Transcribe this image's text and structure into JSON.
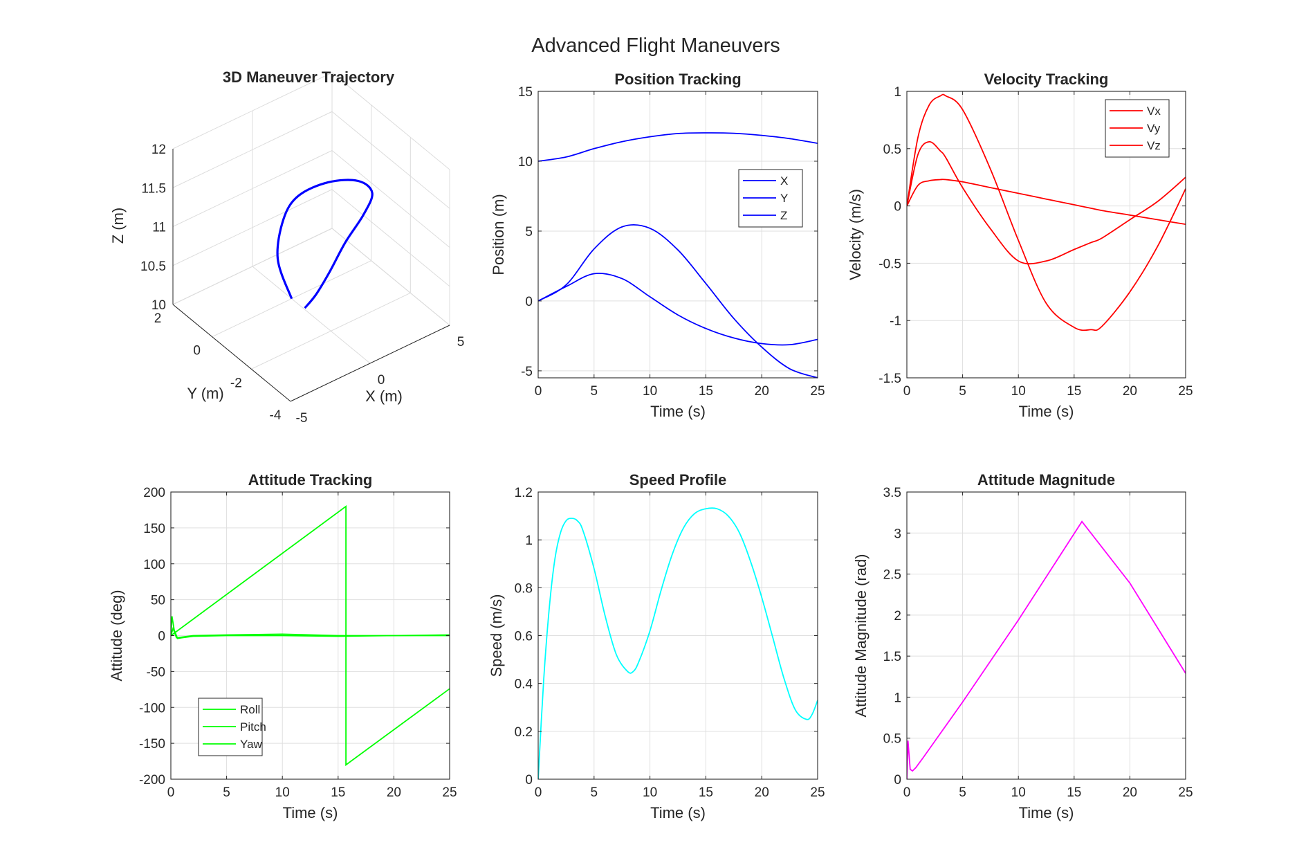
{
  "figure": {
    "title": "Advanced Flight Maneuvers"
  },
  "chart_data": [
    {
      "id": "traj3d",
      "type": "line3d",
      "title": "3D Maneuver Trajectory",
      "xlabel": "X (m)",
      "ylabel": "Y (m)",
      "zlabel": "Z (m)",
      "xlim": [
        -5,
        5
      ],
      "ylim": [
        -4,
        2
      ],
      "zlim": [
        10,
        12
      ],
      "xticks": [
        -5,
        0,
        5
      ],
      "yticks": [
        -4,
        -2,
        0,
        2
      ],
      "zticks": [
        10,
        10.5,
        11,
        11.5,
        12
      ],
      "color": "#0000ff",
      "x": [
        0,
        0.54,
        1.68,
        2.46,
        3.5,
        4.12,
        3.72,
        2.17,
        0.27,
        -1.34,
        -2.33,
        -2.75
      ],
      "y": [
        0,
        1.15,
        1.78,
        1.65,
        0.98,
        -0.05,
        -1.09,
        -1.9,
        -2.52,
        -3.02,
        -3.13,
        -2.9
      ],
      "z": [
        10,
        10.22,
        10.49,
        10.74,
        10.95,
        11.12,
        11.22,
        11.26,
        11.22,
        11.1,
        10.93,
        10.75
      ],
      "grid": true
    },
    {
      "id": "position",
      "type": "line",
      "title": "Position Tracking",
      "xlabel": "Time (s)",
      "ylabel": "Position (m)",
      "xlim": [
        0,
        25
      ],
      "ylim": [
        -5.5,
        15
      ],
      "xticks": [
        0,
        5,
        10,
        15,
        20,
        25
      ],
      "yticks": [
        -5,
        0,
        5,
        10,
        15
      ],
      "legend": "top-right",
      "x": [
        0,
        2.5,
        5,
        7.5,
        10,
        12.5,
        15,
        17.5,
        20,
        22.5,
        25
      ],
      "series": [
        {
          "name": "X",
          "color": "#0000ff",
          "values": [
            0,
            1.15,
            3.72,
            5.3,
            5.2,
            3.65,
            1.25,
            -1.25,
            -3.3,
            -4.85,
            -5.5
          ]
        },
        {
          "name": "Y",
          "color": "#0000ff",
          "values": [
            0,
            1.03,
            1.95,
            1.6,
            0.3,
            -1.0,
            -1.97,
            -2.65,
            -3.05,
            -3.13,
            -2.75
          ]
        },
        {
          "name": "Z",
          "color": "#0000ff",
          "values": [
            10,
            10.3,
            10.9,
            11.4,
            11.75,
            11.98,
            12.03,
            12.0,
            11.85,
            11.62,
            11.28
          ]
        }
      ],
      "grid": true
    },
    {
      "id": "velocity",
      "type": "line",
      "title": "Velocity Tracking",
      "xlabel": "Time (s)",
      "ylabel": "Velocity (m/s)",
      "xlim": [
        0,
        25
      ],
      "ylim": [
        -1.5,
        1
      ],
      "xticks": [
        0,
        5,
        10,
        15,
        20,
        25
      ],
      "yticks": [
        -1.5,
        -1,
        -0.5,
        0,
        0.5,
        1
      ],
      "legend": "top-right",
      "x": [
        0,
        1,
        2,
        3,
        3.5,
        5,
        7.5,
        10,
        12.5,
        15,
        16.5,
        17.5,
        20,
        22.5,
        25
      ],
      "series": [
        {
          "name": "Vx",
          "color": "#ff0000",
          "values": [
            0,
            0.6,
            0.88,
            0.96,
            0.96,
            0.84,
            0.32,
            -0.3,
            -0.85,
            -1.06,
            -1.08,
            -1.05,
            -0.75,
            -0.35,
            0.15
          ]
        },
        {
          "name": "Vy",
          "color": "#ff0000",
          "values": [
            0,
            0.45,
            0.56,
            0.48,
            0.42,
            0.16,
            -0.2,
            -0.48,
            -0.48,
            -0.38,
            -0.32,
            -0.28,
            -0.12,
            0.04,
            0.25
          ]
        },
        {
          "name": "Vz",
          "color": "#ff0000",
          "values": [
            0,
            0.18,
            0.22,
            0.23,
            0.23,
            0.21,
            0.16,
            0.11,
            0.06,
            0.01,
            -0.02,
            -0.04,
            -0.08,
            -0.12,
            -0.16
          ]
        }
      ],
      "grid": true
    },
    {
      "id": "attitude",
      "type": "line",
      "title": "Attitude Tracking",
      "xlabel": "Time (s)",
      "ylabel": "Attitude (deg)",
      "xlim": [
        0,
        25
      ],
      "ylim": [
        -200,
        200
      ],
      "xticks": [
        0,
        5,
        10,
        15,
        20,
        25
      ],
      "yticks": [
        -200,
        -150,
        -100,
        -50,
        0,
        50,
        100,
        150,
        200
      ],
      "legend": "bottom-left",
      "series": [
        {
          "name": "Roll",
          "color": "#00ff00",
          "x": [
            0,
            0.1,
            0.3,
            0.6,
            1,
            2,
            5,
            10,
            15,
            20,
            25
          ],
          "values": [
            0,
            27,
            8,
            -4,
            -3,
            -1,
            0,
            0,
            -1,
            0,
            0
          ]
        },
        {
          "name": "Pitch",
          "color": "#00ff00",
          "x": [
            0,
            0.2,
            0.5,
            1,
            2,
            5,
            10,
            15,
            20,
            25
          ],
          "values": [
            0,
            10,
            -3,
            -2,
            0,
            1,
            2,
            0,
            0,
            1
          ]
        },
        {
          "name": "Yaw",
          "color": "#00ff00",
          "x": [
            0,
            15.7,
            15.7,
            25
          ],
          "values": [
            0,
            180,
            -180,
            -74
          ]
        }
      ],
      "grid": true
    },
    {
      "id": "speed",
      "type": "line",
      "title": "Speed Profile",
      "xlabel": "Time (s)",
      "ylabel": "Speed (m/s)",
      "xlim": [
        0,
        25
      ],
      "ylim": [
        0,
        1.2
      ],
      "xticks": [
        0,
        5,
        10,
        15,
        20,
        25
      ],
      "yticks": [
        0,
        0.2,
        0.4,
        0.6,
        0.8,
        1,
        1.2
      ],
      "series": [
        {
          "name": "",
          "color": "#00ffff",
          "x": [
            0,
            0.5,
            1,
            1.5,
            2,
            2.5,
            3,
            3.5,
            4,
            5,
            6,
            7,
            8,
            8.5,
            9,
            10,
            11,
            12,
            13,
            14,
            15,
            16,
            17,
            18,
            19,
            20,
            21,
            22,
            23,
            24,
            24.5,
            25
          ],
          "values": [
            0,
            0.42,
            0.72,
            0.92,
            1.03,
            1.08,
            1.09,
            1.08,
            1.04,
            0.88,
            0.68,
            0.52,
            0.45,
            0.45,
            0.49,
            0.62,
            0.79,
            0.94,
            1.05,
            1.11,
            1.13,
            1.13,
            1.1,
            1.03,
            0.91,
            0.76,
            0.59,
            0.42,
            0.29,
            0.25,
            0.27,
            0.33
          ]
        }
      ],
      "grid": true
    },
    {
      "id": "attmag",
      "type": "line",
      "title": "Attitude Magnitude",
      "xlabel": "Time (s)",
      "ylabel": "Attitude Magnitude (rad)",
      "xlim": [
        0,
        25
      ],
      "ylim": [
        0,
        3.5
      ],
      "xticks": [
        0,
        5,
        10,
        15,
        20,
        25
      ],
      "yticks": [
        0,
        0.5,
        1,
        1.5,
        2,
        2.5,
        3,
        3.5
      ],
      "series": [
        {
          "name": "",
          "color": "#ff00ff",
          "x": [
            0,
            0.1,
            0.3,
            0.5,
            0.8,
            1.5,
            5,
            10,
            15.7,
            20,
            25
          ],
          "values": [
            0,
            0.47,
            0.12,
            0.1,
            0.14,
            0.27,
            0.94,
            1.94,
            3.14,
            2.39,
            1.29
          ]
        }
      ],
      "grid": true
    }
  ]
}
